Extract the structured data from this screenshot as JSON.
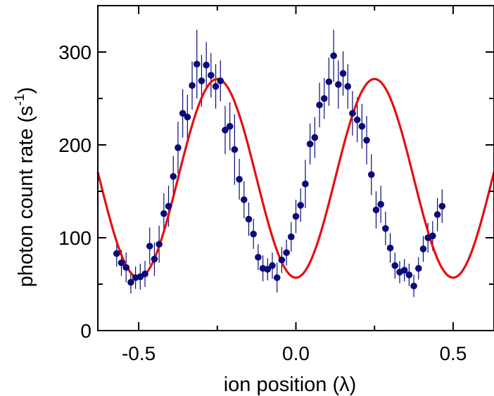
{
  "chart_data": {
    "type": "scatter",
    "xlabel": "ion position (λ)",
    "ylabel_main": "photon count rate (s",
    "ylabel_sup": "-1",
    "ylabel_close": ")",
    "xlim": [
      -0.63,
      0.63
    ],
    "ylim": [
      0,
      350
    ],
    "x_ticks": [
      -0.5,
      0.0,
      0.5
    ],
    "x_tick_labels": [
      "-0.5",
      "0.0",
      "0.5"
    ],
    "y_ticks": [
      0,
      100,
      200,
      300
    ],
    "y_tick_labels": [
      "0",
      "100",
      "200",
      "300"
    ],
    "colors": {
      "points": "#0a0a78",
      "fit": "#e41010",
      "axes": "#000000"
    },
    "series": [
      {
        "type": "scatter",
        "points": [
          [
            -0.57,
            83,
            14
          ],
          [
            -0.555,
            73,
            14
          ],
          [
            -0.54,
            68,
            16
          ],
          [
            -0.525,
            52,
            12
          ],
          [
            -0.51,
            57,
            12
          ],
          [
            -0.495,
            58,
            14
          ],
          [
            -0.48,
            61,
            14
          ],
          [
            -0.465,
            91,
            20
          ],
          [
            -0.45,
            77,
            18
          ],
          [
            -0.435,
            93,
            20
          ],
          [
            -0.42,
            126,
            22
          ],
          [
            -0.405,
            134,
            22
          ],
          [
            -0.39,
            166,
            22
          ],
          [
            -0.375,
            197,
            28
          ],
          [
            -0.36,
            234,
            26
          ],
          [
            -0.345,
            230,
            24
          ],
          [
            -0.33,
            264,
            26
          ],
          [
            -0.315,
            287,
            37
          ],
          [
            -0.3,
            269,
            28
          ],
          [
            -0.285,
            286,
            25
          ],
          [
            -0.27,
            275,
            24
          ],
          [
            -0.255,
            263,
            24
          ],
          [
            -0.24,
            269,
            22
          ],
          [
            -0.225,
            216,
            26
          ],
          [
            -0.21,
            220,
            26
          ],
          [
            -0.195,
            195,
            38
          ],
          [
            -0.18,
            163,
            22
          ],
          [
            -0.165,
            141,
            20
          ],
          [
            -0.15,
            120,
            18
          ],
          [
            -0.135,
            104,
            16
          ],
          [
            -0.12,
            79,
            14
          ],
          [
            -0.105,
            67,
            14
          ],
          [
            -0.09,
            66,
            12
          ],
          [
            -0.075,
            70,
            14
          ],
          [
            -0.06,
            57,
            16
          ],
          [
            -0.045,
            76,
            14
          ],
          [
            -0.03,
            84,
            14
          ],
          [
            -0.015,
            101,
            16
          ],
          [
            0.0,
            123,
            18
          ],
          [
            0.015,
            135,
            18
          ],
          [
            0.03,
            158,
            26
          ],
          [
            0.045,
            201,
            22
          ],
          [
            0.06,
            208,
            22
          ],
          [
            0.075,
            243,
            24
          ],
          [
            0.09,
            250,
            22
          ],
          [
            0.105,
            268,
            26
          ],
          [
            0.12,
            296,
            28
          ],
          [
            0.135,
            265,
            26
          ],
          [
            0.15,
            277,
            24
          ],
          [
            0.165,
            263,
            24
          ],
          [
            0.18,
            234,
            24
          ],
          [
            0.195,
            227,
            24
          ],
          [
            0.21,
            220,
            24
          ],
          [
            0.225,
            205,
            26
          ],
          [
            0.24,
            168,
            22
          ],
          [
            0.255,
            130,
            20
          ],
          [
            0.27,
            136,
            20
          ],
          [
            0.285,
            110,
            18
          ],
          [
            0.3,
            89,
            16
          ],
          [
            0.315,
            70,
            14
          ],
          [
            0.33,
            63,
            12
          ],
          [
            0.345,
            65,
            12
          ],
          [
            0.36,
            60,
            12
          ],
          [
            0.375,
            48,
            12
          ],
          [
            0.39,
            67,
            12
          ],
          [
            0.405,
            88,
            14
          ],
          [
            0.42,
            100,
            16
          ],
          [
            0.435,
            102,
            16
          ],
          [
            0.45,
            125,
            18
          ],
          [
            0.465,
            134,
            18
          ]
        ]
      },
      {
        "type": "line",
        "fit": {
          "offset": 164,
          "amplitude": 107,
          "period": 0.5,
          "maximum_at": -0.25
        }
      }
    ]
  }
}
